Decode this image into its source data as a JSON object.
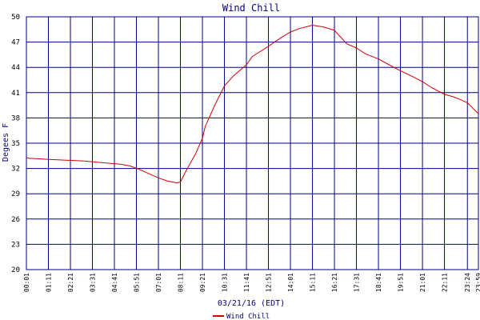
{
  "chart_data": {
    "type": "line",
    "title": "Wind Chill",
    "xlabel": "03/21/16 (EDT)",
    "ylabel": "Degees F",
    "ylim": [
      20,
      50
    ],
    "yticks": [
      "20",
      "23",
      "26",
      "29",
      "32",
      "35",
      "38",
      "41",
      "44",
      "47",
      "50"
    ],
    "xticks": [
      "00:01",
      "01:11",
      "02:21",
      "03:31",
      "04:41",
      "05:51",
      "07:01",
      "08:11",
      "09:21",
      "10:31",
      "11:41",
      "12:51",
      "14:01",
      "15:11",
      "16:21",
      "17:31",
      "18:41",
      "19:51",
      "21:01",
      "22:11",
      "23:24"
    ],
    "xtick_end": "23:59",
    "grid": true,
    "legend_position": "bottom-center",
    "series_color": "#cc0000",
    "grid_color": "#000080",
    "series": [
      {
        "name": "Wind Chill",
        "x": [
          "00:01",
          "00:10",
          "00:20",
          "01:00",
          "02:00",
          "03:00",
          "04:00",
          "05:00",
          "05:30",
          "06:00",
          "06:30",
          "07:00",
          "07:30",
          "08:00",
          "08:11",
          "08:30",
          "09:00",
          "09:21",
          "09:30",
          "10:00",
          "10:31",
          "11:00",
          "11:41",
          "12:00",
          "12:51",
          "13:30",
          "14:01",
          "14:30",
          "15:11",
          "15:45",
          "16:21",
          "17:00",
          "17:31",
          "18:00",
          "18:41",
          "19:15",
          "19:51",
          "20:30",
          "21:01",
          "21:30",
          "22:11",
          "22:40",
          "23:00",
          "23:24",
          "23:40",
          "23:59"
        ],
        "y": [
          33.3,
          33.2,
          33.2,
          33.1,
          33.0,
          32.9,
          32.7,
          32.5,
          32.3,
          31.9,
          31.4,
          30.9,
          30.5,
          30.3,
          30.4,
          31.8,
          33.8,
          35.6,
          37.0,
          39.5,
          41.8,
          43.0,
          44.3,
          45.3,
          46.5,
          47.5,
          48.2,
          48.6,
          49.0,
          48.8,
          48.4,
          46.8,
          46.3,
          45.6,
          45.0,
          44.3,
          43.6,
          42.9,
          42.3,
          41.6,
          40.8,
          40.5,
          40.2,
          39.8,
          39.2,
          38.5
        ]
      }
    ]
  }
}
